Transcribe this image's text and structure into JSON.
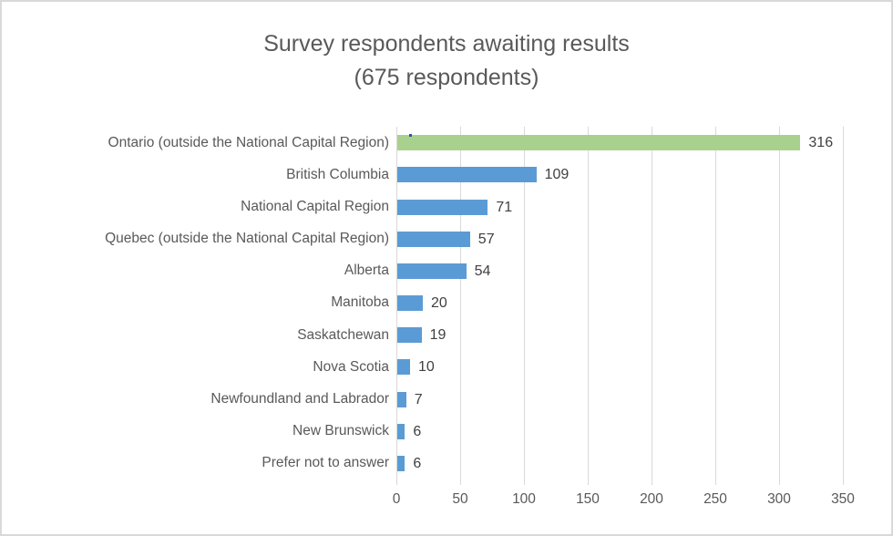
{
  "chart_data": {
    "type": "bar",
    "orientation": "horizontal",
    "title": "Survey respondents awaiting results",
    "subtitle": "(675 respondents)",
    "categories": [
      "Ontario (outside the National Capital Region)",
      "British Columbia",
      "National Capital Region",
      "Quebec (outside the National Capital Region)",
      "Alberta",
      "Manitoba",
      "Saskatchewan",
      "Nova Scotia",
      "Newfoundland and Labrador",
      "New Brunswick",
      "Prefer not to answer"
    ],
    "values": [
      316,
      109,
      71,
      57,
      54,
      20,
      19,
      10,
      7,
      6,
      6
    ],
    "value_labels": [
      "316",
      "109",
      "71",
      "57",
      "54",
      "20",
      "19",
      "10",
      "7",
      "6",
      "6"
    ],
    "highlight_index": 0,
    "xlim": [
      0,
      350
    ],
    "x_ticks": [
      0,
      50,
      100,
      150,
      200,
      250,
      300,
      350
    ],
    "grid": true,
    "legend": "none",
    "colors": {
      "bar_default": "#5b9bd5",
      "bar_highlight": "#a9d18e",
      "title_text": "#595959",
      "axis_text": "#595959",
      "value_text": "#404040",
      "gridline": "#d9d9d9",
      "border": "#d9d9d9",
      "stray_marker": "#2f5597"
    },
    "annotations": [
      {
        "name": "stray-marker-dot",
        "x_units": 10,
        "row": 0
      }
    ]
  }
}
